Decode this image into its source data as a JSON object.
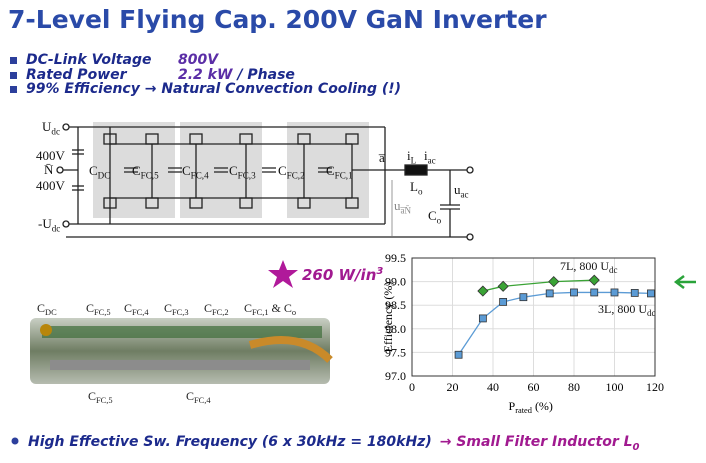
{
  "header": {
    "title": "7-Level Flying Cap. 200V GaN Inverter"
  },
  "bullets": [
    {
      "label": "DC-Link Voltage",
      "value": "800V"
    },
    {
      "label": "Rated Power",
      "value": "2.2 kW",
      "unit": "/ Phase"
    },
    {
      "label": "99% Efficiency → Natural Convection Cooling (!)"
    }
  ],
  "circuit": {
    "labels": [
      {
        "main": "U",
        "sub": "dc"
      },
      {
        "main": "400V"
      },
      {
        "main": "N̄"
      },
      {
        "main": "400V"
      },
      {
        "main": "-U",
        "sub": "dc"
      },
      {
        "main": "C",
        "sub": "DC"
      },
      {
        "main": "C",
        "sub": "FC,5"
      },
      {
        "main": "C",
        "sub": "FC,4"
      },
      {
        "main": "C",
        "sub": "FC,3"
      },
      {
        "main": "C",
        "sub": "FC,2"
      },
      {
        "main": "C",
        "sub": "FC,1"
      },
      {
        "main": "a̅"
      },
      {
        "main": "i",
        "sub": "L"
      },
      {
        "main": "i",
        "sub": "ac"
      },
      {
        "main": "L",
        "sub": "o"
      },
      {
        "main": "u",
        "sub": "ac"
      },
      {
        "main": "u",
        "sub": "a̅N̄"
      },
      {
        "main": "C",
        "sub": "o"
      }
    ]
  },
  "density": {
    "text": "260 W/in",
    "sup": "3"
  },
  "photo": {
    "top_labels": [
      {
        "main": "C",
        "sub": "DC"
      },
      {
        "main": "C",
        "sub": "FC,5"
      },
      {
        "main": "C",
        "sub": "FC,4"
      },
      {
        "main": "C",
        "sub": "FC,3"
      },
      {
        "main": "C",
        "sub": "FC,2"
      },
      {
        "main": "C",
        "sub": "FC,1",
        "suffix": " & C",
        "sub2": "o"
      }
    ],
    "bottom_labels": [
      {
        "main": "C",
        "sub": "FC,5"
      },
      {
        "main": "C",
        "sub": "FC,4"
      }
    ]
  },
  "chart_data": {
    "type": "line",
    "ylabel": "Efficiency (%)",
    "xlabel": {
      "main": "P",
      "sub": "rated",
      "suffix": " (%)"
    },
    "xlim": [
      0,
      120
    ],
    "xticks": [
      0,
      20,
      40,
      60,
      80,
      100,
      120
    ],
    "ylim": [
      97,
      99.5
    ],
    "yticks": [
      {
        "value": 97,
        "label": "97.0"
      },
      97.5,
      {
        "value": 98,
        "label": "98.0"
      },
      98.5,
      {
        "value": 99,
        "label": "99.0"
      },
      99.5
    ],
    "grid": true,
    "series": [
      {
        "name": "7L, 800 U",
        "name_sub": "dc",
        "color": "#3aa335",
        "marker": "diamond",
        "x": [
          35,
          45,
          70,
          90
        ],
        "values": [
          98.8,
          98.9,
          99.0,
          99.03
        ]
      },
      {
        "name": "3L, 800 U",
        "name_sub": "dc",
        "color": "#5b9bd5",
        "marker": "square",
        "x": [
          23,
          35,
          45,
          55,
          68,
          80,
          90,
          100,
          110,
          118
        ],
        "values": [
          97.45,
          98.22,
          98.57,
          98.67,
          98.75,
          98.77,
          98.77,
          98.77,
          98.76,
          98.75
        ]
      }
    ]
  },
  "footer": {
    "text": "High Effective Sw. Frequency (6 x 30kHz = 180kHz)",
    "result": "→ Small Filter Inductor L",
    "sub": "0"
  }
}
